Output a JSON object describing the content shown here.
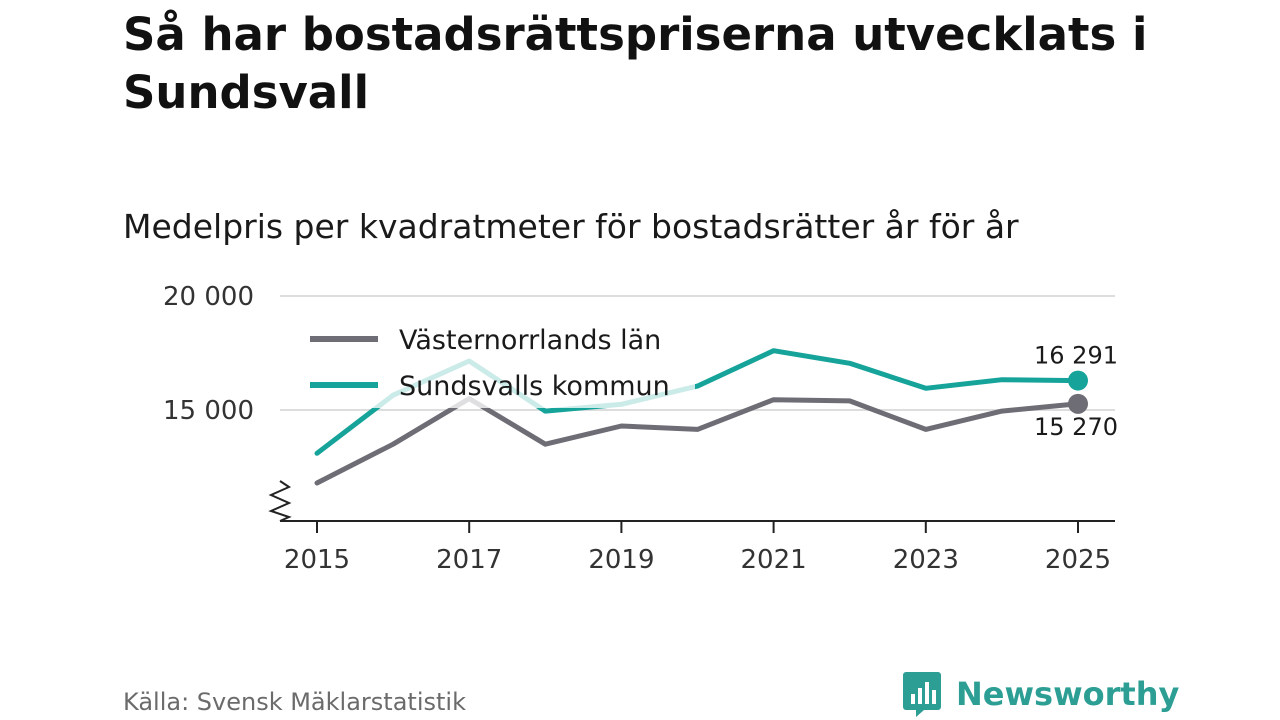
{
  "title": "Så har bostadsrättspriserna utvecklats i Sundsvall",
  "subtitle": "Medelpris per kvadratmeter för bostadsrätter år för år",
  "source": "Källa: Svensk Mäklarstatistik",
  "brand": {
    "name": "Newsworthy",
    "icon": "newsworthy-logo-icon"
  },
  "colors": {
    "lan": "#6e6d75",
    "kommun": "#15a39a",
    "grid": "#dddddd",
    "axis": "#222222",
    "brand": "#2c9e94"
  },
  "chart_data": {
    "type": "line",
    "title": "Medelpris per kvadratmeter för bostadsrätter år för år",
    "xlabel": "",
    "ylabel": "",
    "x": [
      2015,
      2016,
      2017,
      2018,
      2019,
      2020,
      2021,
      2022,
      2023,
      2024,
      2025
    ],
    "xticks": [
      2015,
      2017,
      2019,
      2021,
      2023,
      2025
    ],
    "xtick_labels": [
      "2015",
      "2017",
      "2019",
      "2021",
      "2023",
      "2025"
    ],
    "yticks": [
      15000,
      20000
    ],
    "ytick_labels": [
      "15 000",
      "20 000"
    ],
    "ylim": [
      10000,
      20000
    ],
    "axis_break": true,
    "grid": true,
    "legend_position": "top-left",
    "series": [
      {
        "name": "Västernorrlands län",
        "key": "lan",
        "values": [
          11800,
          13500,
          15500,
          13500,
          14300,
          14150,
          15450,
          15400,
          14150,
          14950,
          15270
        ],
        "end_label": "15 270"
      },
      {
        "name": "Sundsvalls kommun",
        "key": "kommun",
        "values": [
          13100,
          15650,
          17150,
          14950,
          15250,
          16050,
          17600,
          17050,
          15950,
          16330,
          16291
        ],
        "end_label": "16 291"
      }
    ]
  }
}
